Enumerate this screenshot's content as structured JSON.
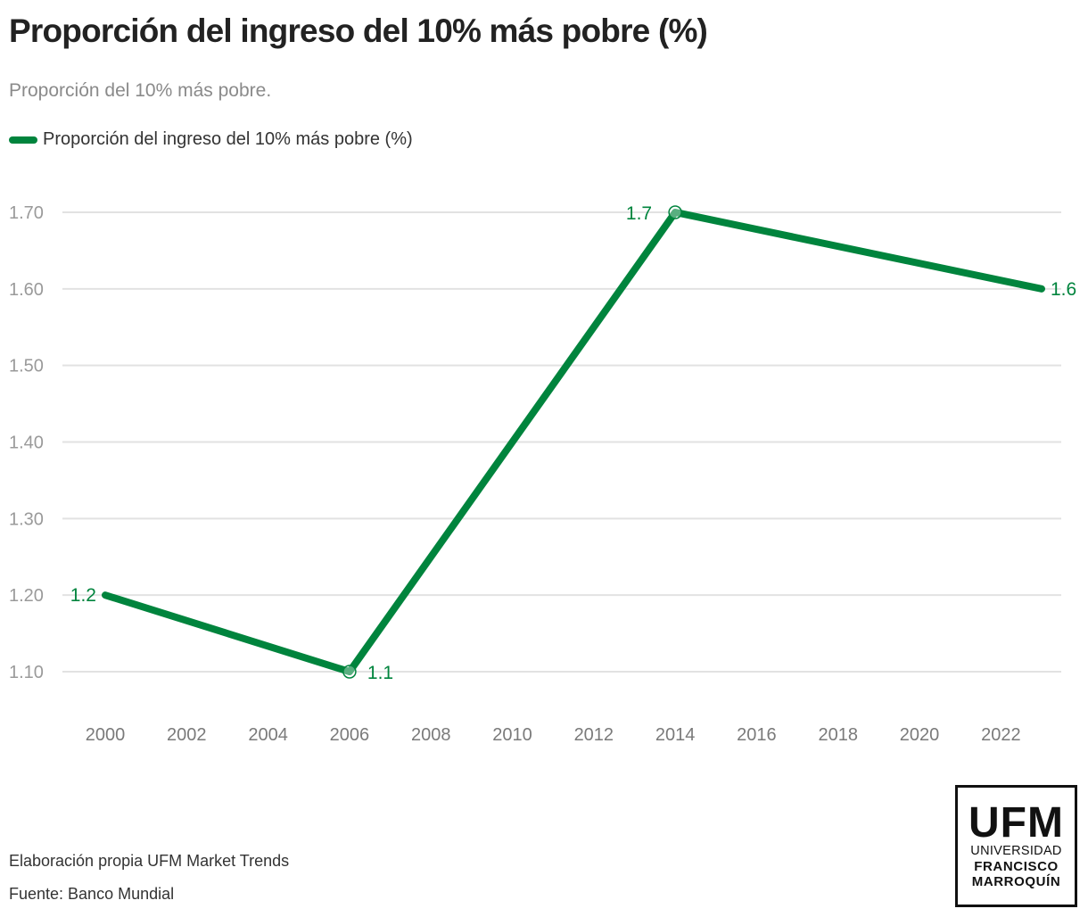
{
  "header": {
    "title": "Proporción del ingreso del 10% más pobre (%)",
    "subtitle": "Proporción del 10% más pobre."
  },
  "legend": {
    "label": "Proporción del ingreso del 10% más pobre (%)"
  },
  "colors": {
    "series": "#00843d",
    "grid": "#e2e2e2",
    "axis_text": "#9a9a9a"
  },
  "chart_data": {
    "type": "line",
    "title": "Proporción del ingreso del 10% más pobre (%)",
    "subtitle": "Proporción del 10% más pobre.",
    "xlabel": "",
    "ylabel": "",
    "legend_position": "top-left",
    "grid": true,
    "xlim": [
      1999.5,
      2023.5
    ],
    "ylim": [
      1.1,
      1.7
    ],
    "x_ticks": [
      "2000",
      "2002",
      "2004",
      "2006",
      "2008",
      "2010",
      "2012",
      "2014",
      "2016",
      "2018",
      "2020",
      "2022"
    ],
    "y_ticks": [
      "1.10",
      "1.20",
      "1.30",
      "1.40",
      "1.50",
      "1.60",
      "1.70"
    ],
    "series": [
      {
        "name": "Proporción del ingreso del 10% más pobre (%)",
        "x": [
          2000,
          2006,
          2014,
          2023
        ],
        "values": [
          1.2,
          1.1,
          1.7,
          1.6
        ],
        "labels": [
          "1.2",
          "1.1",
          "1.7",
          "1.6"
        ]
      }
    ]
  },
  "footer": {
    "credit": "Elaboración propia UFM Market Trends",
    "source": "Fuente: Banco Mundial"
  },
  "logo": {
    "main": "UFM",
    "line1": "UNIVERSIDAD",
    "line2": "FRANCISCO",
    "line3": "MARROQUÍN"
  }
}
